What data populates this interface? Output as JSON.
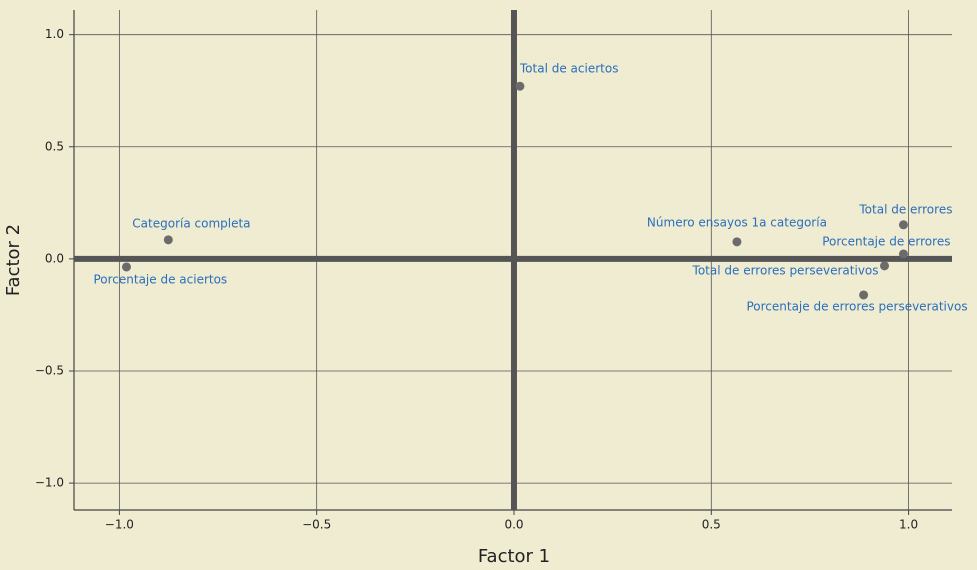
{
  "chart_data": {
    "type": "scatter",
    "x_label": "Factor 1",
    "y_label": "Factor 2",
    "xlim": [
      -1.115,
      1.11
    ],
    "ylim": [
      -1.12,
      1.11
    ],
    "xticks": [
      {
        "value": -1.0,
        "label": "−1.0"
      },
      {
        "value": -0.5,
        "label": "−0.5"
      },
      {
        "value": 0,
        "label": "0.0"
      },
      {
        "value": 0.5,
        "label": "0.5"
      },
      {
        "value": 1.0,
        "label": "1.0"
      }
    ],
    "yticks": [
      {
        "value": -1.0,
        "label": "−1.0"
      },
      {
        "value": -0.5,
        "label": "−0.5"
      },
      {
        "value": 0,
        "label": "0.0"
      },
      {
        "value": 0.5,
        "label": "0.5"
      },
      {
        "value": 1.0,
        "label": "1.0"
      }
    ],
    "grid": true,
    "color": "#6b6b6b",
    "labels": [
      "Total de aciertos",
      "Categoría completa",
      "Porcentaje de aciertos",
      "Número ensayos 1a categoría",
      "Total de errores",
      "Porcentaje de errores",
      "Total de errores perseverativos",
      "Porcentaje de errores perseverativos"
    ],
    "x": [
      0.015,
      -0.876,
      -0.982,
      0.565,
      0.987,
      0.987,
      0.939,
      0.886
    ],
    "y": [
      0.77,
      0.085,
      -0.036,
      0.076,
      0.152,
      0.022,
      -0.031,
      -0.161
    ]
  }
}
